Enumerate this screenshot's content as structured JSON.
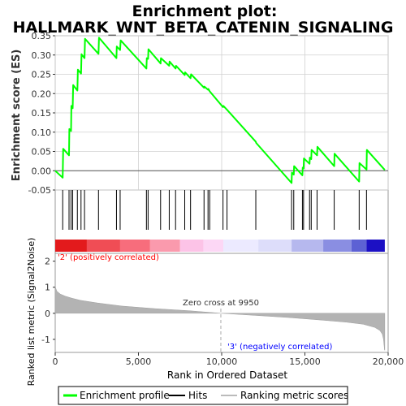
{
  "chart_data": {
    "type": "line",
    "title_line1": "Enrichment plot:",
    "title_line2": "HALLMARK_WNT_BETA_CATENIN_SIGNALING",
    "xlabel": "Rank in Ordered Dataset",
    "top_ylabel": "Enrichment score (ES)",
    "bottom_ylabel": "Ranked list metric (Signal2Noise)",
    "xlim": [
      0,
      20000
    ],
    "xticks": [
      0,
      5000,
      10000,
      15000,
      20000
    ],
    "xtick_labels": [
      "0",
      "5,000",
      "10,000",
      "15,000",
      "20,000"
    ],
    "es_ylim": [
      -0.05,
      0.35
    ],
    "es_yticks": [
      -0.05,
      0.0,
      0.05,
      0.1,
      0.15,
      0.2,
      0.25,
      0.3,
      0.35
    ],
    "es_ytick_labels": [
      "-0.05",
      "0.00",
      "0.05",
      "0.10",
      "0.15",
      "0.20",
      "0.25",
      "0.30",
      "0.35"
    ],
    "metric_ylim": [
      -1.5,
      2.3
    ],
    "metric_yticks": [
      -1,
      0,
      1,
      2
    ],
    "metric_ytick_labels": [
      "-1",
      "0",
      "1",
      "2"
    ],
    "es_profile": [
      [
        0,
        0.0
      ],
      [
        450,
        -0.018
      ],
      [
        480,
        0.057
      ],
      [
        830,
        0.04
      ],
      [
        850,
        0.108
      ],
      [
        950,
        0.103
      ],
      [
        970,
        0.168
      ],
      [
        1050,
        0.162
      ],
      [
        1080,
        0.222
      ],
      [
        1330,
        0.208
      ],
      [
        1360,
        0.262
      ],
      [
        1550,
        0.252
      ],
      [
        1580,
        0.302
      ],
      [
        1760,
        0.292
      ],
      [
        1790,
        0.342
      ],
      [
        2600,
        0.303
      ],
      [
        2630,
        0.345
      ],
      [
        3680,
        0.292
      ],
      [
        3700,
        0.322
      ],
      [
        3900,
        0.313
      ],
      [
        3930,
        0.338
      ],
      [
        5480,
        0.265
      ],
      [
        5500,
        0.292
      ],
      [
        5580,
        0.29
      ],
      [
        5600,
        0.315
      ],
      [
        6330,
        0.278
      ],
      [
        6350,
        0.292
      ],
      [
        6850,
        0.272
      ],
      [
        6870,
        0.283
      ],
      [
        7230,
        0.265
      ],
      [
        7260,
        0.272
      ],
      [
        7780,
        0.248
      ],
      [
        7800,
        0.255
      ],
      [
        8130,
        0.24
      ],
      [
        8160,
        0.25
      ],
      [
        8940,
        0.215
      ],
      [
        8960,
        0.218
      ],
      [
        9180,
        0.21
      ],
      [
        9200,
        0.212
      ],
      [
        9280,
        0.206
      ],
      [
        10080,
        0.165
      ],
      [
        10100,
        0.168
      ],
      [
        10320,
        0.158
      ],
      [
        12050,
        0.075
      ],
      [
        12080,
        0.072
      ],
      [
        14200,
        -0.032
      ],
      [
        14220,
        -0.005
      ],
      [
        14330,
        -0.01
      ],
      [
        14350,
        0.012
      ],
      [
        14850,
        -0.012
      ],
      [
        14870,
        0.008
      ],
      [
        14920,
        0.006
      ],
      [
        14940,
        0.032
      ],
      [
        15280,
        0.018
      ],
      [
        15300,
        0.034
      ],
      [
        15380,
        0.03
      ],
      [
        15400,
        0.054
      ],
      [
        15730,
        0.04
      ],
      [
        15750,
        0.062
      ],
      [
        16760,
        0.012
      ],
      [
        16780,
        0.044
      ],
      [
        18260,
        -0.028
      ],
      [
        18280,
        0.02
      ],
      [
        18700,
        0.003
      ],
      [
        18720,
        0.054
      ],
      [
        19800,
        0.002
      ]
    ],
    "hits": [
      450,
      830,
      950,
      1050,
      1330,
      1550,
      1760,
      2600,
      3680,
      3900,
      5480,
      5580,
      6330,
      6850,
      7230,
      7780,
      8130,
      8940,
      9180,
      9280,
      10080,
      10320,
      12050,
      14200,
      14330,
      14850,
      14920,
      15280,
      15380,
      15730,
      16760,
      18260,
      18700
    ],
    "metric_profile": [
      [
        0,
        1.02
      ],
      [
        100,
        0.85
      ],
      [
        300,
        0.74
      ],
      [
        600,
        0.66
      ],
      [
        1000,
        0.58
      ],
      [
        1500,
        0.5
      ],
      [
        2500,
        0.4
      ],
      [
        4000,
        0.28
      ],
      [
        6000,
        0.18
      ],
      [
        8000,
        0.1
      ],
      [
        9950,
        0.0
      ],
      [
        12000,
        -0.08
      ],
      [
        14000,
        -0.16
      ],
      [
        16000,
        -0.26
      ],
      [
        17500,
        -0.34
      ],
      [
        18500,
        -0.42
      ],
      [
        19200,
        -0.54
      ],
      [
        19500,
        -0.66
      ],
      [
        19650,
        -0.8
      ],
      [
        19720,
        -1.0
      ],
      [
        19780,
        -1.4
      ],
      [
        19800,
        -1.42
      ]
    ],
    "colorbar": [
      {
        "from": 0,
        "to": 1900,
        "color": "#e31a1c"
      },
      {
        "from": 1900,
        "to": 3900,
        "color": "#f04d55"
      },
      {
        "from": 3900,
        "to": 5700,
        "color": "#f76d7c"
      },
      {
        "from": 5700,
        "to": 7500,
        "color": "#fa9aad"
      },
      {
        "from": 7500,
        "to": 8900,
        "color": "#fcc3e7"
      },
      {
        "from": 8900,
        "to": 10100,
        "color": "#fcd7f5"
      },
      {
        "from": 10100,
        "to": 12200,
        "color": "#eceaff"
      },
      {
        "from": 12200,
        "to": 14200,
        "color": "#ddddfa"
      },
      {
        "from": 14200,
        "to": 16100,
        "color": "#b6b8ee"
      },
      {
        "from": 16100,
        "to": 17800,
        "color": "#8a8ee2"
      },
      {
        "from": 17800,
        "to": 18700,
        "color": "#5d61d4"
      },
      {
        "from": 18700,
        "to": 19800,
        "color": "#1c10c4"
      }
    ],
    "zero_cross_label": "Zero cross at 9950",
    "zero_cross_x": 9950,
    "pos_label": "'2' (positively correlated)",
    "neg_label": "'3' (negatively correlated)",
    "legend": {
      "items": [
        "Enrichment profile",
        "Hits",
        "Ranking metric scores"
      ],
      "colors": [
        "#00ff00",
        "#000000",
        "#bbbbbb"
      ]
    }
  }
}
